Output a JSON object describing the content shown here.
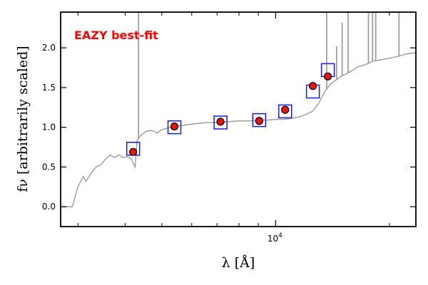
{
  "chart_data": {
    "type": "scatter",
    "title": "",
    "xlabel": "λ [Å]",
    "ylabel": "fν [arbitrarily scaled]",
    "xscale": "log",
    "xlim": [
      2700,
      23500
    ],
    "ylim": [
      -0.25,
      2.45
    ],
    "grid": false,
    "annotation": {
      "text": "EAZY best-fit",
      "color": "#ff0000",
      "placement": "top-left"
    },
    "x_tick_labels": [
      {
        "x": 10000,
        "base": "10",
        "exp": "4"
      }
    ],
    "y_ticks": [
      0.0,
      0.5,
      1.0,
      1.5,
      2.0
    ],
    "y_tick_labels": [
      "0.0",
      "0.5",
      "1.0",
      "1.5",
      "2.0"
    ],
    "colors": {
      "template": "#a0a0a0",
      "model_box": "#1a1ae6",
      "point_fill": "#e8140e",
      "point_edge": "#000000",
      "annotation": "#ff0000"
    },
    "template_spectrum": {
      "name": "",
      "points": [
        [
          2700,
          0.0
        ],
        [
          2900,
          0.0
        ],
        [
          3000,
          0.25
        ],
        [
          3100,
          0.38
        ],
        [
          3150,
          0.32
        ],
        [
          3250,
          0.42
        ],
        [
          3350,
          0.5
        ],
        [
          3450,
          0.53
        ],
        [
          3550,
          0.6
        ],
        [
          3650,
          0.65
        ],
        [
          3750,
          0.62
        ],
        [
          3850,
          0.65
        ],
        [
          3950,
          0.62
        ],
        [
          4050,
          0.63
        ],
        [
          4150,
          0.6
        ],
        [
          4250,
          0.5
        ],
        [
          4300,
          0.83
        ],
        [
          4400,
          0.9
        ],
        [
          4550,
          0.95
        ],
        [
          4700,
          0.96
        ],
        [
          4861,
          0.93
        ],
        [
          5000,
          0.97
        ],
        [
          5300,
          1.0
        ],
        [
          5600,
          1.02
        ],
        [
          6000,
          1.04
        ],
        [
          6563,
          1.06
        ],
        [
          7000,
          1.06
        ],
        [
          7500,
          1.07
        ],
        [
          8000,
          1.08
        ],
        [
          8500,
          1.08
        ],
        [
          9000,
          1.09
        ],
        [
          9500,
          1.09
        ],
        [
          10000,
          1.1
        ],
        [
          10500,
          1.1
        ],
        [
          11000,
          1.11
        ],
        [
          11500,
          1.13
        ],
        [
          12000,
          1.16
        ],
        [
          12500,
          1.2
        ],
        [
          13000,
          1.3
        ],
        [
          13500,
          1.45
        ],
        [
          14000,
          1.55
        ],
        [
          14500,
          1.6
        ],
        [
          15000,
          1.65
        ],
        [
          15500,
          1.68
        ],
        [
          16000,
          1.72
        ],
        [
          16500,
          1.76
        ],
        [
          17000,
          1.78
        ],
        [
          17500,
          1.8
        ],
        [
          18000,
          1.83
        ],
        [
          19000,
          1.85
        ],
        [
          20000,
          1.87
        ],
        [
          21000,
          1.89
        ],
        [
          22000,
          1.92
        ],
        [
          23500,
          1.94
        ]
      ],
      "emission_lines": [
        {
          "x": 4340,
          "peak": 2.45
        },
        {
          "x": 13650,
          "peak": 2.45
        },
        {
          "x": 14500,
          "peak": 2.02
        },
        {
          "x": 15000,
          "peak": 2.32
        },
        {
          "x": 15550,
          "peak": 2.45
        },
        {
          "x": 17600,
          "peak": 2.45
        },
        {
          "x": 18050,
          "peak": 2.45
        },
        {
          "x": 18400,
          "peak": 2.45
        },
        {
          "x": 21200,
          "peak": 2.45
        }
      ]
    },
    "series": [
      {
        "name": "",
        "marker": "circle",
        "points": [
          {
            "x": 4200,
            "y": 0.69,
            "err": 0.03
          },
          {
            "x": 5400,
            "y": 1.01,
            "err": 0.03
          },
          {
            "x": 7150,
            "y": 1.07,
            "err": 0.03
          },
          {
            "x": 9050,
            "y": 1.08,
            "err": 0.03
          },
          {
            "x": 10600,
            "y": 1.22,
            "err": 0.04
          },
          {
            "x": 12550,
            "y": 1.52,
            "err": 0.04
          },
          {
            "x": 13750,
            "y": 1.64,
            "err": 0.03
          }
        ]
      },
      {
        "name": "",
        "marker": "square",
        "points": [
          {
            "x": 4200,
            "y": 0.73
          },
          {
            "x": 5400,
            "y": 1.0
          },
          {
            "x": 7150,
            "y": 1.06
          },
          {
            "x": 9050,
            "y": 1.09
          },
          {
            "x": 10600,
            "y": 1.2
          },
          {
            "x": 12550,
            "y": 1.45
          },
          {
            "x": 13750,
            "y": 1.72
          }
        ]
      }
    ]
  }
}
